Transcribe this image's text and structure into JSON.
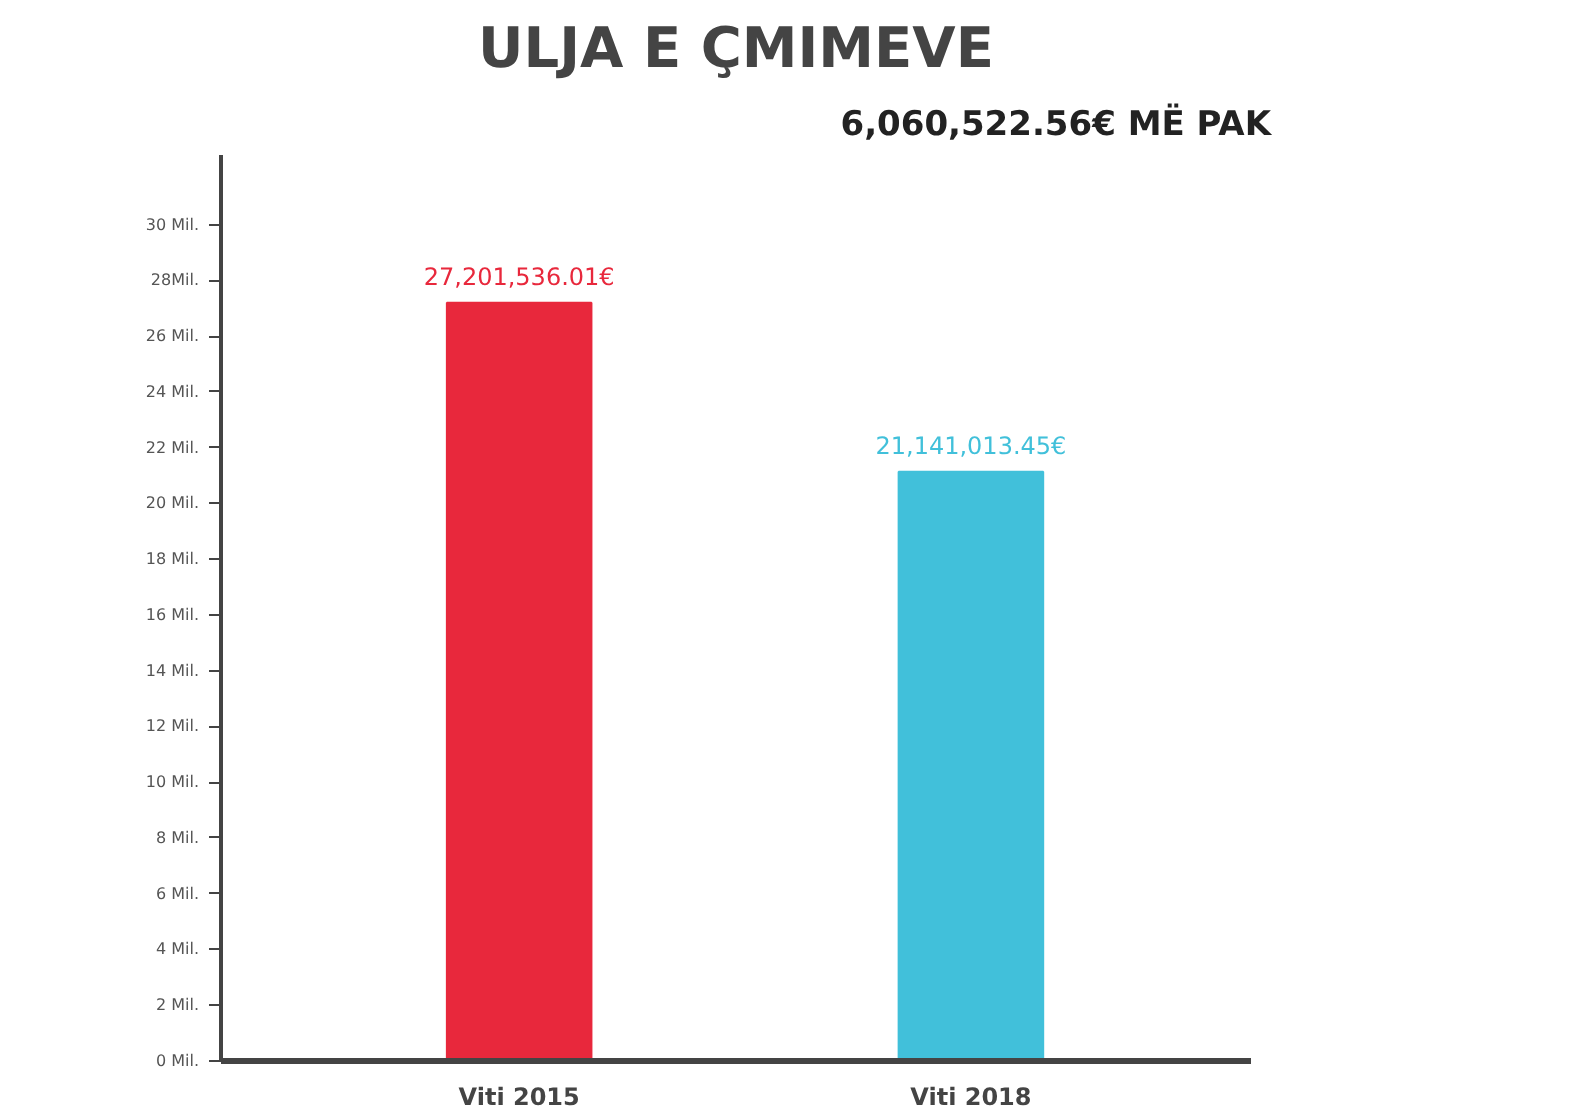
{
  "chart_data": {
    "type": "bar",
    "title": "ULJA E ÇMIMEVE",
    "subtitle": "6,060,522.56€ MË PAK",
    "categories": [
      "Viti 2015",
      "Viti 2018"
    ],
    "values": [
      27.2,
      21.14
    ],
    "colors": [
      "#e8283c",
      "#41c0da"
    ],
    "annotations": [
      {
        "text": "27,201,536.01€",
        "x": "Viti 2015",
        "y": 27.2
      },
      {
        "text": "21,141,013.45€",
        "x": "Viti 2018",
        "y": 21.14
      }
    ],
    "ylim": [
      0,
      32.5
    ],
    "yticks": [
      {
        "value": 0,
        "label": "0 Mil."
      },
      {
        "value": 2,
        "label": "2 Mil."
      },
      {
        "value": 4,
        "label": "4 Mil."
      },
      {
        "value": 6,
        "label": "6 Mil."
      },
      {
        "value": 8,
        "label": "8 Mil."
      },
      {
        "value": 10,
        "label": "10 Mil."
      },
      {
        "value": 12,
        "label": "12 Mil."
      },
      {
        "value": 14,
        "label": "14 Mil."
      },
      {
        "value": 16,
        "label": "16 Mil."
      },
      {
        "value": 18,
        "label": "18 Mil."
      },
      {
        "value": 20,
        "label": "20 Mil."
      },
      {
        "value": 22,
        "label": "22 Mil."
      },
      {
        "value": 24,
        "label": "24 Mil."
      },
      {
        "value": 26,
        "label": "26 Mil."
      },
      {
        "value": 28,
        "label": "28Mil."
      },
      {
        "value": 30,
        "label": "30 Mil."
      }
    ]
  }
}
